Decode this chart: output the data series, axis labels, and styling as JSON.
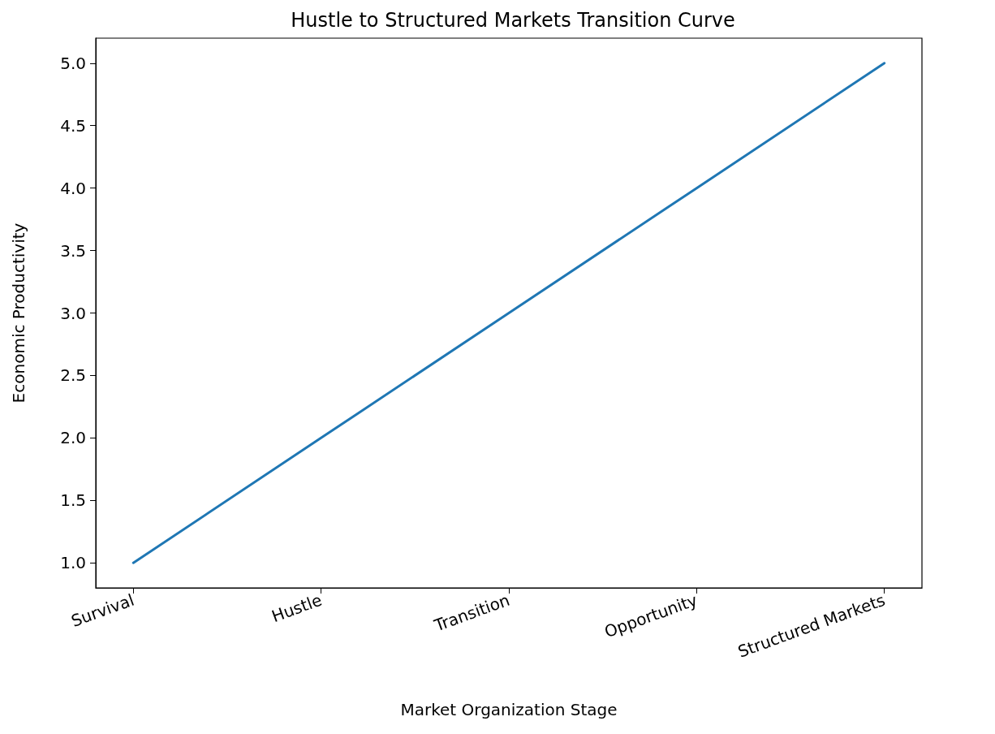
{
  "chart_data": {
    "type": "line",
    "title": "Hustle to Structured Markets Transition Curve",
    "xlabel": "Market Organization Stage",
    "ylabel": "Economic Productivity",
    "categories": [
      "Survival",
      "Hustle",
      "Transition",
      "Opportunity",
      "Structured Markets"
    ],
    "series": [
      {
        "color": "#1f77b4",
        "values": [
          1,
          2,
          3,
          4,
          5
        ]
      }
    ],
    "ylim": [
      0.8,
      5.2
    ],
    "yticks": [
      {
        "value": 1,
        "label": "1.0"
      },
      {
        "value": 1.5,
        "label": "1.5"
      },
      {
        "value": 2,
        "label": "2.0"
      },
      {
        "value": 2.5,
        "label": "2.5"
      },
      {
        "value": 3,
        "label": "3.0"
      },
      {
        "value": 3.5,
        "label": "3.5"
      },
      {
        "value": 4,
        "label": "4.0"
      },
      {
        "value": 4.5,
        "label": "4.5"
      },
      {
        "value": 5,
        "label": "5.0"
      }
    ],
    "grid": false,
    "marker": "none",
    "line_style": "solid"
  }
}
